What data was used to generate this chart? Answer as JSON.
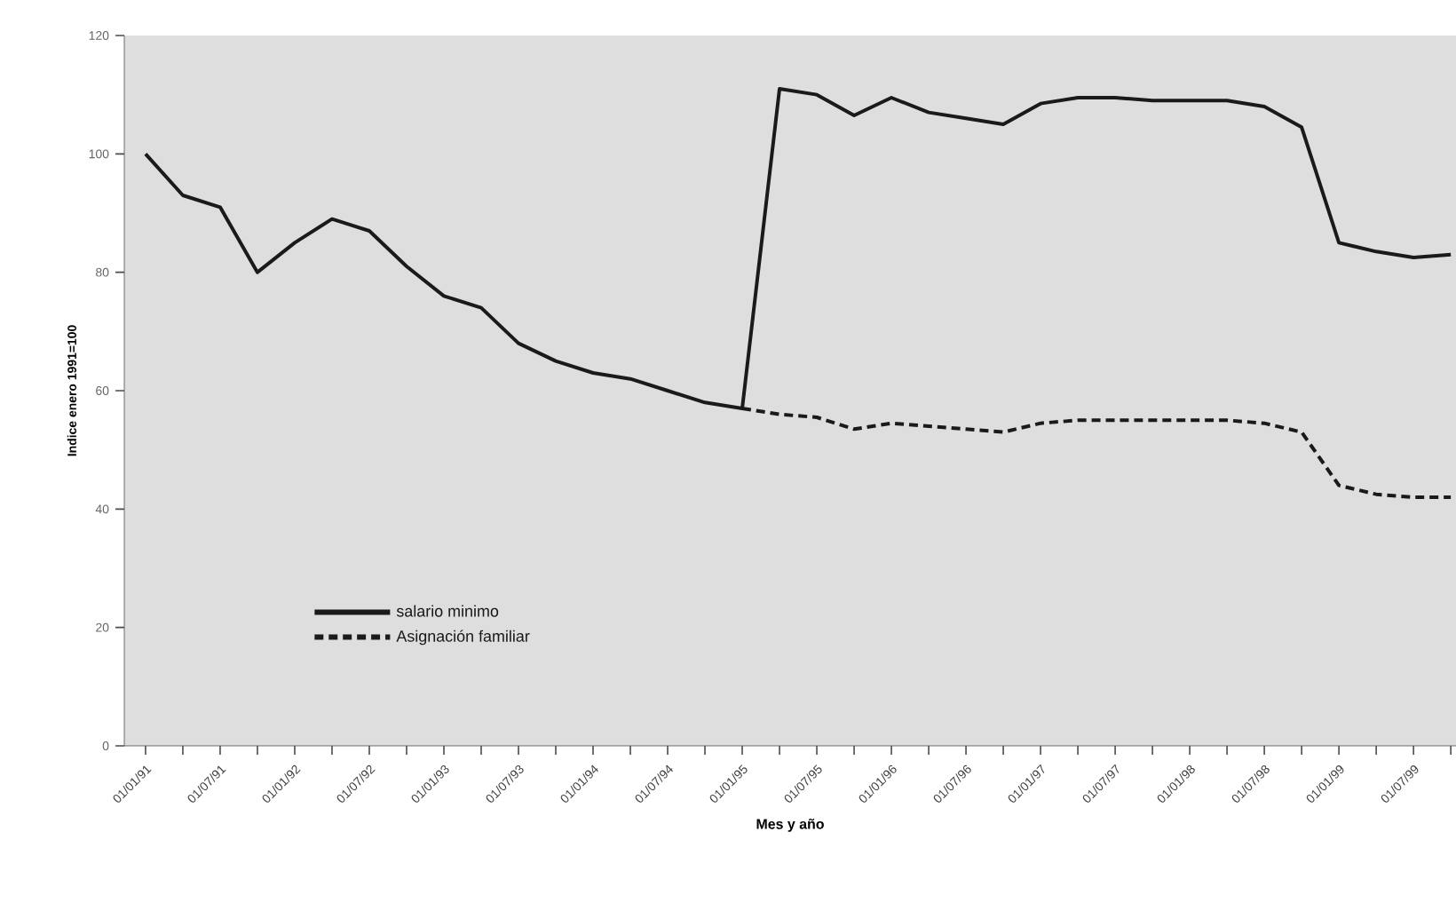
{
  "chart_data": {
    "type": "line",
    "xlabel": "Mes y año",
    "ylabel": "Indice enero 1991=100",
    "categories": [
      "01/01/91",
      null,
      "01/07/91",
      null,
      "01/01/92",
      null,
      "01/07/92",
      null,
      "01/01/93",
      null,
      "01/07/93",
      null,
      "01/01/94",
      null,
      "01/07/94",
      null,
      "01/01/95",
      null,
      "01/07/95",
      null,
      "01/01/96",
      null,
      "01/07/96",
      null,
      "01/01/97",
      null,
      "01/07/97",
      null,
      "01/01/98",
      null,
      "01/07/98",
      null,
      "01/01/99",
      null,
      "01/07/99",
      null
    ],
    "series": [
      {
        "name": "salario minimo",
        "color": "#1a1a1a",
        "line_style": "solid",
        "values": [
          100,
          93,
          91,
          80,
          85,
          89,
          87,
          81,
          76,
          74,
          68,
          65,
          63,
          62,
          60,
          58,
          57,
          111,
          110,
          106.5,
          109.5,
          107,
          106,
          105,
          108.5,
          109.5,
          109.5,
          109,
          109,
          109,
          108,
          104.5,
          85,
          83.5,
          82.5,
          83
        ]
      },
      {
        "name": "Asignación familiar",
        "color": "#1a1a1a",
        "line_style": "dashed",
        "values": [
          null,
          null,
          null,
          null,
          null,
          null,
          null,
          null,
          null,
          null,
          null,
          null,
          null,
          null,
          null,
          null,
          57,
          56,
          55.5,
          53.5,
          54.5,
          54,
          53.5,
          53,
          54.5,
          55,
          55,
          55,
          55,
          55,
          54.5,
          53,
          44,
          42.5,
          42,
          42
        ]
      }
    ],
    "ylim": [
      0,
      120
    ],
    "yticks": [
      0,
      20,
      40,
      60,
      80,
      100,
      120
    ],
    "grid": false,
    "legend": "bottom left",
    "marker": "none"
  }
}
